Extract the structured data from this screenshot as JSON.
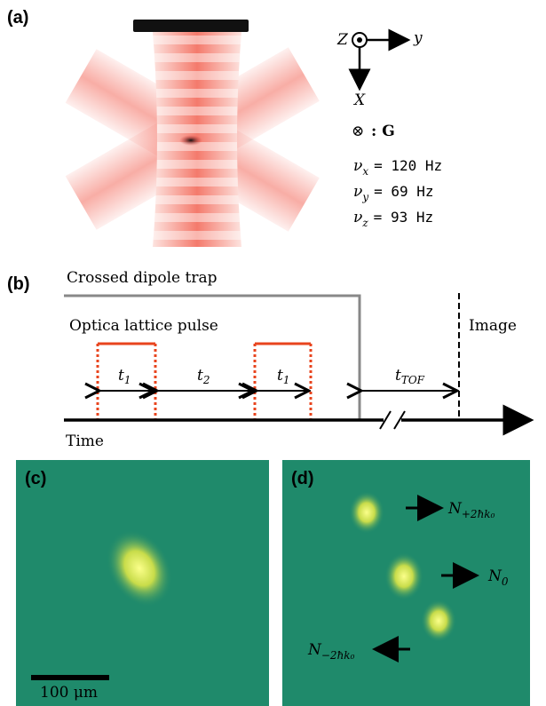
{
  "panels": {
    "a": "(a)",
    "b": "(b)",
    "c": "(c)",
    "d": "(d)"
  },
  "axes": {
    "z": "Z",
    "y": "y",
    "x": "X"
  },
  "legend": {
    "symbol": "⊗",
    "text": ": G"
  },
  "frequencies": [
    {
      "symbol": "ν",
      "sub": "x",
      "value": "= 120 Hz"
    },
    {
      "symbol": "ν",
      "sub": "y",
      "value": "= 69 Hz"
    },
    {
      "symbol": "ν",
      "sub": "z",
      "value": "= 93 Hz"
    }
  ],
  "timing": {
    "trap": "Crossed dipole trap",
    "lattice": "Optica lattice pulse",
    "image": "Image",
    "time": "Time",
    "intervals": [
      {
        "symbol": "t",
        "sub": "1"
      },
      {
        "symbol": "t",
        "sub": "2"
      },
      {
        "symbol": "t",
        "sub": "1"
      },
      {
        "symbol": "t",
        "sub": "TOF"
      }
    ]
  },
  "scale_bar": "100 μm",
  "orders": [
    {
      "symbol": "N",
      "sub": "+2ħk₀"
    },
    {
      "symbol": "N",
      "sub": "0"
    },
    {
      "symbol": "N",
      "sub": "−2ħk₀"
    }
  ]
}
